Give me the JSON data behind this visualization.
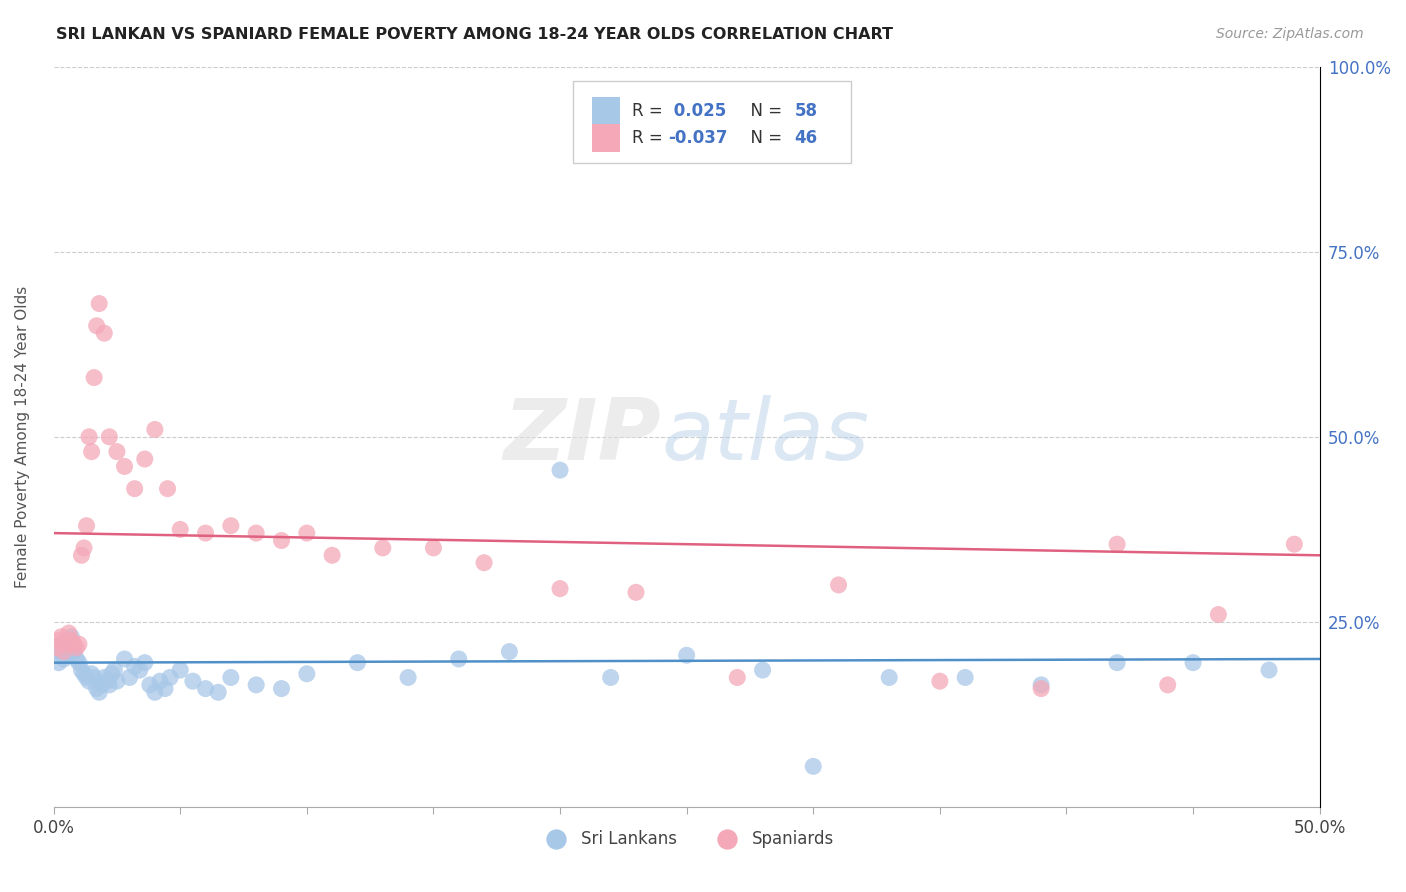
{
  "title": "SRI LANKAN VS SPANIARD FEMALE POVERTY AMONG 18-24 YEAR OLDS CORRELATION CHART",
  "source": "Source: ZipAtlas.com",
  "ylabel": "Female Poverty Among 18-24 Year Olds",
  "xlim": [
    0.0,
    0.5
  ],
  "ylim": [
    0.0,
    1.0
  ],
  "sri_lanka_color": "#a8c8e8",
  "spaniard_color": "#f4a8b8",
  "sri_lanka_line_color": "#5090c8",
  "spaniard_line_color": "#e06080",
  "sri_lankans_label": "Sri Lankans",
  "spaniards_label": "Spaniards",
  "sl_x": [
    0.001,
    0.002,
    0.003,
    0.004,
    0.005,
    0.006,
    0.007,
    0.008,
    0.009,
    0.01,
    0.011,
    0.012,
    0.013,
    0.014,
    0.015,
    0.016,
    0.017,
    0.018,
    0.019,
    0.02,
    0.021,
    0.022,
    0.023,
    0.024,
    0.025,
    0.028,
    0.03,
    0.032,
    0.034,
    0.036,
    0.038,
    0.04,
    0.042,
    0.044,
    0.046,
    0.05,
    0.055,
    0.06,
    0.065,
    0.07,
    0.08,
    0.09,
    0.1,
    0.12,
    0.14,
    0.16,
    0.18,
    0.2,
    0.22,
    0.25,
    0.28,
    0.3,
    0.33,
    0.36,
    0.39,
    0.42,
    0.45,
    0.48
  ],
  "sl_y": [
    0.21,
    0.195,
    0.22,
    0.2,
    0.215,
    0.205,
    0.23,
    0.21,
    0.2,
    0.195,
    0.185,
    0.18,
    0.175,
    0.17,
    0.18,
    0.175,
    0.16,
    0.155,
    0.165,
    0.175,
    0.17,
    0.165,
    0.18,
    0.185,
    0.17,
    0.2,
    0.175,
    0.19,
    0.185,
    0.195,
    0.165,
    0.155,
    0.17,
    0.16,
    0.175,
    0.185,
    0.17,
    0.16,
    0.155,
    0.175,
    0.165,
    0.16,
    0.18,
    0.195,
    0.175,
    0.2,
    0.21,
    0.455,
    0.175,
    0.205,
    0.185,
    0.055,
    0.175,
    0.175,
    0.165,
    0.195,
    0.195,
    0.185
  ],
  "sp_x": [
    0.001,
    0.002,
    0.003,
    0.004,
    0.005,
    0.006,
    0.007,
    0.008,
    0.009,
    0.01,
    0.011,
    0.012,
    0.013,
    0.014,
    0.015,
    0.016,
    0.017,
    0.018,
    0.02,
    0.022,
    0.025,
    0.028,
    0.032,
    0.036,
    0.04,
    0.045,
    0.05,
    0.06,
    0.07,
    0.08,
    0.09,
    0.1,
    0.11,
    0.13,
    0.15,
    0.17,
    0.2,
    0.23,
    0.27,
    0.31,
    0.35,
    0.39,
    0.42,
    0.44,
    0.46,
    0.49
  ],
  "sp_y": [
    0.215,
    0.225,
    0.23,
    0.21,
    0.22,
    0.235,
    0.225,
    0.22,
    0.215,
    0.22,
    0.34,
    0.35,
    0.38,
    0.5,
    0.48,
    0.58,
    0.65,
    0.68,
    0.64,
    0.5,
    0.48,
    0.46,
    0.43,
    0.47,
    0.51,
    0.43,
    0.375,
    0.37,
    0.38,
    0.37,
    0.36,
    0.37,
    0.34,
    0.35,
    0.35,
    0.33,
    0.295,
    0.29,
    0.175,
    0.3,
    0.17,
    0.16,
    0.355,
    0.165,
    0.26,
    0.355
  ],
  "sl_trend_start": 0.195,
  "sl_trend_end": 0.2,
  "sp_trend_start": 0.37,
  "sp_trend_end": 0.34
}
